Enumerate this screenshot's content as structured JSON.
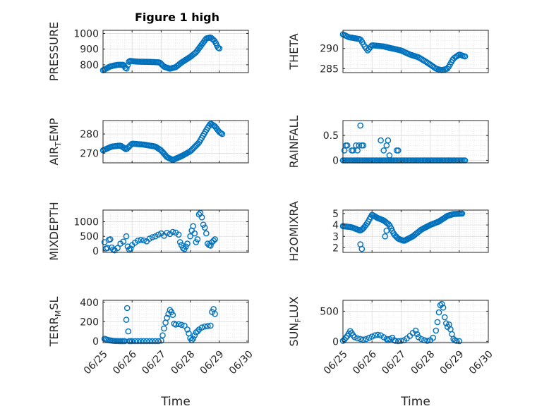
{
  "figure": {
    "title": "Figure 1 high",
    "marker_color": "#0072bd"
  },
  "chart_data": [
    {
      "type": "scatter",
      "title": "Figure 1 high",
      "ylabel": "PRESSURE",
      "ylabel_sub": "",
      "xlabel": "",
      "xlim": [
        0,
        5
      ],
      "ylim": [
        750,
        1020
      ],
      "yticks": [
        800,
        900,
        1000
      ],
      "xticks": [],
      "show_xticklabels": false,
      "grid": true,
      "anchors": [
        [
          0.0,
          765
        ],
        [
          0.1,
          775
        ],
        [
          0.25,
          790
        ],
        [
          0.5,
          800
        ],
        [
          0.7,
          800
        ],
        [
          0.8,
          772
        ],
        [
          0.9,
          825
        ],
        [
          1.2,
          820
        ],
        [
          1.7,
          818
        ],
        [
          1.95,
          815
        ],
        [
          2.1,
          788
        ],
        [
          2.3,
          775
        ],
        [
          2.5,
          785
        ],
        [
          2.7,
          815
        ],
        [
          3.0,
          850
        ],
        [
          3.2,
          880
        ],
        [
          3.4,
          930
        ],
        [
          3.55,
          968
        ],
        [
          3.7,
          975
        ],
        [
          3.85,
          950
        ],
        [
          3.95,
          910
        ],
        [
          4.0,
          905
        ]
      ],
      "n": 100
    },
    {
      "type": "scatter",
      "title": "",
      "ylabel": "THETA",
      "ylabel_sub": "",
      "xlabel": "",
      "xlim": [
        0,
        5
      ],
      "ylim": [
        284,
        294.5
      ],
      "yticks": [
        285,
        290
      ],
      "xticks": [],
      "show_xticklabels": false,
      "grid": true,
      "anchors": [
        [
          0.0,
          293.5
        ],
        [
          0.2,
          292.8
        ],
        [
          0.6,
          292.3
        ],
        [
          0.75,
          290.5
        ],
        [
          0.85,
          289.5
        ],
        [
          1.0,
          290.8
        ],
        [
          1.4,
          290.5
        ],
        [
          1.7,
          290.0
        ],
        [
          2.0,
          289.5
        ],
        [
          2.3,
          288.5
        ],
        [
          2.6,
          287.8
        ],
        [
          2.9,
          286.5
        ],
        [
          3.2,
          285.0
        ],
        [
          3.4,
          284.6
        ],
        [
          3.6,
          285.0
        ],
        [
          3.8,
          287.5
        ],
        [
          4.0,
          288.5
        ],
        [
          4.2,
          288.0
        ]
      ],
      "n": 90
    },
    {
      "type": "scatter",
      "title": "",
      "ylabel": "AIR",
      "ylabel_sub": "T",
      "ylabel_tail": "EMP",
      "xlabel": "",
      "xlim": [
        0,
        5
      ],
      "ylim": [
        265,
        287
      ],
      "yticks": [
        270,
        280
      ],
      "xticks": [],
      "show_xticklabels": false,
      "grid": true,
      "anchors": [
        [
          0.0,
          271.5
        ],
        [
          0.3,
          273.5
        ],
        [
          0.6,
          274.0
        ],
        [
          0.8,
          272.0
        ],
        [
          1.0,
          275.0
        ],
        [
          1.4,
          274.5
        ],
        [
          1.8,
          273.5
        ],
        [
          2.0,
          271.5
        ],
        [
          2.2,
          268.0
        ],
        [
          2.4,
          266.5
        ],
        [
          2.7,
          268.5
        ],
        [
          3.0,
          271.0
        ],
        [
          3.3,
          275.5
        ],
        [
          3.55,
          282.0
        ],
        [
          3.7,
          285.5
        ],
        [
          3.85,
          284.0
        ],
        [
          4.0,
          281.0
        ],
        [
          4.1,
          280.0
        ]
      ],
      "n": 100
    },
    {
      "type": "scatter",
      "title": "",
      "ylabel": "RAINFALL",
      "ylabel_sub": "",
      "xlabel": "",
      "xlim": [
        0,
        5
      ],
      "ylim": [
        -0.05,
        0.8
      ],
      "yticks": [
        0,
        0.5
      ],
      "xticks": [],
      "show_xticklabels": false,
      "grid": true,
      "points": [
        [
          0.05,
          0.2
        ],
        [
          0.1,
          0.3
        ],
        [
          0.15,
          0.3
        ],
        [
          0.3,
          0.2
        ],
        [
          0.35,
          0.2
        ],
        [
          0.45,
          0.3
        ],
        [
          0.5,
          0.2
        ],
        [
          0.55,
          0.3
        ],
        [
          0.6,
          0.7
        ],
        [
          0.65,
          0.3
        ],
        [
          0.7,
          0.3
        ],
        [
          1.3,
          0.4
        ],
        [
          1.4,
          0.2
        ],
        [
          1.5,
          0.3
        ],
        [
          1.55,
          0.4
        ],
        [
          1.6,
          0.1
        ],
        [
          1.85,
          0.2
        ],
        [
          1.9,
          0.2
        ]
      ],
      "zero_range": [
        0.0,
        4.2
      ],
      "zero_n": 85
    },
    {
      "type": "scatter",
      "title": "",
      "ylabel": "MIXDEPTH",
      "ylabel_sub": "",
      "xlabel": "",
      "xlim": [
        0,
        5
      ],
      "ylim": [
        -50,
        1400
      ],
      "yticks": [
        0,
        500,
        1000
      ],
      "xticks": [],
      "show_xticklabels": false,
      "grid": true,
      "points": [
        [
          0.05,
          300
        ],
        [
          0.1,
          80
        ],
        [
          0.15,
          100
        ],
        [
          0.2,
          380
        ],
        [
          0.25,
          400
        ],
        [
          0.3,
          120
        ],
        [
          0.35,
          50
        ],
        [
          0.4,
          20
        ],
        [
          0.5,
          100
        ],
        [
          0.6,
          250
        ],
        [
          0.7,
          320
        ],
        [
          0.8,
          500
        ],
        [
          0.85,
          150
        ],
        [
          0.9,
          50
        ],
        [
          0.95,
          80
        ],
        [
          1.0,
          200
        ],
        [
          1.1,
          280
        ],
        [
          1.2,
          350
        ],
        [
          1.3,
          380
        ],
        [
          1.4,
          360
        ],
        [
          1.5,
          330
        ],
        [
          1.6,
          420
        ],
        [
          1.7,
          470
        ],
        [
          1.8,
          500
        ],
        [
          1.9,
          560
        ],
        [
          2.0,
          600
        ],
        [
          2.1,
          520
        ],
        [
          2.2,
          620
        ],
        [
          2.3,
          580
        ],
        [
          2.4,
          650
        ],
        [
          2.5,
          630
        ],
        [
          2.6,
          560
        ],
        [
          2.65,
          300
        ],
        [
          2.7,
          200
        ],
        [
          2.75,
          100
        ],
        [
          2.8,
          60
        ],
        [
          2.85,
          150
        ],
        [
          2.9,
          250
        ],
        [
          3.0,
          500
        ],
        [
          3.05,
          700
        ],
        [
          3.1,
          850
        ],
        [
          3.15,
          600
        ],
        [
          3.2,
          300
        ],
        [
          3.25,
          400
        ],
        [
          3.3,
          1250
        ],
        [
          3.35,
          1300
        ],
        [
          3.4,
          1150
        ],
        [
          3.45,
          900
        ],
        [
          3.5,
          800
        ],
        [
          3.55,
          600
        ],
        [
          3.6,
          250
        ],
        [
          3.65,
          200
        ],
        [
          3.7,
          180
        ],
        [
          3.75,
          300
        ],
        [
          3.8,
          350
        ],
        [
          3.85,
          400
        ]
      ]
    },
    {
      "type": "scatter",
      "title": "",
      "ylabel": "H2OMIXRA",
      "ylabel_sub": "",
      "xlabel": "",
      "xlim": [
        0,
        5
      ],
      "ylim": [
        1.6,
        5.3
      ],
      "yticks": [
        2,
        3,
        4,
        5
      ],
      "xticks": [],
      "show_xticklabels": false,
      "grid": true,
      "anchors": [
        [
          0.0,
          3.9
        ],
        [
          0.3,
          3.8
        ],
        [
          0.6,
          3.5
        ],
        [
          0.7,
          3.7
        ],
        [
          0.85,
          4.2
        ],
        [
          1.0,
          4.9
        ],
        [
          1.2,
          4.6
        ],
        [
          1.4,
          4.4
        ],
        [
          1.6,
          4.0
        ],
        [
          1.75,
          3.2
        ],
        [
          1.9,
          2.8
        ],
        [
          2.1,
          2.6
        ],
        [
          2.4,
          3.0
        ],
        [
          2.7,
          3.6
        ],
        [
          3.0,
          4.0
        ],
        [
          3.3,
          4.3
        ],
        [
          3.6,
          4.8
        ],
        [
          3.8,
          4.95
        ],
        [
          4.1,
          5.0
        ]
      ],
      "n": 100,
      "extra": [
        [
          0.6,
          2.3
        ],
        [
          0.65,
          1.9
        ],
        [
          1.5,
          3.5
        ],
        [
          1.45,
          3.0
        ]
      ]
    },
    {
      "type": "scatter",
      "title": "",
      "ylabel": "TERR",
      "ylabel_sub": "M",
      "ylabel_tail": "SL",
      "xlabel": "Time",
      "xlim": [
        0,
        5
      ],
      "ylim": [
        -15,
        420
      ],
      "yticks": [
        0,
        200,
        400
      ],
      "xticks": [
        0,
        1,
        2,
        3,
        4,
        5
      ],
      "xticklabels": [
        "06/25",
        "06/26",
        "06/27",
        "06/28",
        "06/29",
        "06/30"
      ],
      "show_xticklabels": true,
      "grid": true,
      "points": [
        [
          0.05,
          25
        ],
        [
          0.1,
          20
        ],
        [
          0.15,
          15
        ],
        [
          0.2,
          10
        ],
        [
          0.25,
          8
        ],
        [
          0.3,
          5
        ],
        [
          0.35,
          3
        ],
        [
          0.4,
          2
        ],
        [
          0.45,
          1
        ],
        [
          0.5,
          1
        ],
        [
          0.55,
          0
        ],
        [
          0.6,
          0
        ],
        [
          0.65,
          0
        ],
        [
          0.7,
          0
        ],
        [
          0.75,
          0
        ],
        [
          0.8,
          220
        ],
        [
          0.83,
          340
        ],
        [
          0.87,
          100
        ],
        [
          0.9,
          0
        ],
        [
          0.95,
          0
        ],
        [
          1.0,
          0
        ],
        [
          1.1,
          0
        ],
        [
          1.2,
          0
        ],
        [
          1.3,
          0
        ],
        [
          1.4,
          0
        ],
        [
          1.5,
          0
        ],
        [
          1.6,
          0
        ],
        [
          1.7,
          0
        ],
        [
          1.8,
          0
        ],
        [
          1.9,
          0
        ],
        [
          2.0,
          5
        ],
        [
          2.05,
          60
        ],
        [
          2.1,
          130
        ],
        [
          2.15,
          190
        ],
        [
          2.2,
          240
        ],
        [
          2.25,
          280
        ],
        [
          2.3,
          320
        ],
        [
          2.35,
          300
        ],
        [
          2.4,
          270
        ],
        [
          2.45,
          180
        ],
        [
          2.5,
          170
        ],
        [
          2.6,
          175
        ],
        [
          2.7,
          168
        ],
        [
          2.8,
          160
        ],
        [
          2.9,
          120
        ],
        [
          2.95,
          80
        ],
        [
          3.0,
          30
        ],
        [
          3.05,
          10
        ],
        [
          3.1,
          25
        ],
        [
          3.15,
          60
        ],
        [
          3.2,
          90
        ],
        [
          3.25,
          100
        ],
        [
          3.3,
          120
        ],
        [
          3.4,
          140
        ],
        [
          3.5,
          150
        ],
        [
          3.6,
          155
        ],
        [
          3.7,
          160
        ],
        [
          3.75,
          300
        ],
        [
          3.8,
          330
        ],
        [
          3.85,
          280
        ]
      ]
    },
    {
      "type": "scatter",
      "title": "",
      "ylabel": "SUN",
      "ylabel_sub": "F",
      "ylabel_tail": "LUX",
      "xlabel": "Time",
      "xlim": [
        0,
        5
      ],
      "ylim": [
        -20,
        680
      ],
      "yticks": [
        0,
        500
      ],
      "xticks": [
        0,
        1,
        2,
        3,
        4,
        5
      ],
      "xticklabels": [
        "06/25",
        "06/26",
        "06/27",
        "06/28",
        "06/29",
        "06/30"
      ],
      "show_xticklabels": true,
      "grid": true,
      "points": [
        [
          0.0,
          10
        ],
        [
          0.05,
          30
        ],
        [
          0.1,
          60
        ],
        [
          0.15,
          90
        ],
        [
          0.2,
          130
        ],
        [
          0.25,
          170
        ],
        [
          0.3,
          140
        ],
        [
          0.35,
          100
        ],
        [
          0.4,
          70
        ],
        [
          0.5,
          50
        ],
        [
          0.6,
          40
        ],
        [
          0.7,
          30
        ],
        [
          0.8,
          40
        ],
        [
          0.9,
          60
        ],
        [
          1.0,
          80
        ],
        [
          1.1,
          100
        ],
        [
          1.2,
          110
        ],
        [
          1.3,
          100
        ],
        [
          1.4,
          70
        ],
        [
          1.5,
          40
        ],
        [
          1.55,
          20
        ],
        [
          1.6,
          40
        ],
        [
          1.7,
          60
        ],
        [
          1.75,
          20
        ],
        [
          1.8,
          10
        ],
        [
          1.9,
          5
        ],
        [
          2.0,
          10
        ],
        [
          2.1,
          20
        ],
        [
          2.2,
          50
        ],
        [
          2.3,
          90
        ],
        [
          2.4,
          140
        ],
        [
          2.5,
          180
        ],
        [
          2.55,
          120
        ],
        [
          2.6,
          70
        ],
        [
          2.7,
          40
        ],
        [
          2.8,
          20
        ],
        [
          2.9,
          10
        ],
        [
          3.0,
          20
        ],
        [
          3.1,
          60
        ],
        [
          3.2,
          180
        ],
        [
          3.25,
          320
        ],
        [
          3.3,
          480
        ],
        [
          3.35,
          600
        ],
        [
          3.4,
          620
        ],
        [
          3.45,
          560
        ],
        [
          3.5,
          400
        ],
        [
          3.55,
          300
        ],
        [
          3.6,
          240
        ],
        [
          3.65,
          280
        ],
        [
          3.7,
          200
        ],
        [
          3.75,
          120
        ],
        [
          3.8,
          40
        ],
        [
          3.85,
          20
        ],
        [
          3.9,
          10
        ],
        [
          4.0,
          5
        ]
      ]
    }
  ]
}
